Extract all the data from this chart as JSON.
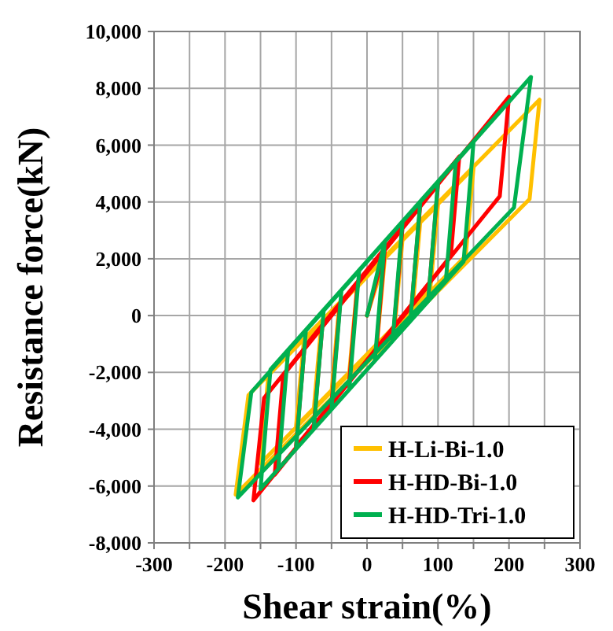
{
  "chart_data": {
    "type": "line",
    "xlabel": "Shear strain(%)",
    "ylabel": "Resistance force(kN)",
    "xlim": [
      -300,
      300
    ],
    "xticks": [
      -300,
      {
        "value": -250,
        "label": null
      },
      -200,
      {
        "value": -150,
        "label": null
      },
      -100,
      {
        "value": -50,
        "label": null
      },
      0,
      {
        "value": 50,
        "label": null
      },
      100,
      {
        "value": 150,
        "label": null
      },
      200,
      {
        "value": 250,
        "label": null
      },
      300
    ],
    "ylim": [
      -8000,
      10000
    ],
    "yticks": [
      {
        "value": -8000,
        "label": "-8,000"
      },
      {
        "value": -6000,
        "label": "-6,000"
      },
      {
        "value": -4000,
        "label": "-4,000"
      },
      {
        "value": -2000,
        "label": "-2,000"
      },
      0,
      {
        "value": 2000,
        "label": "2,000"
      },
      {
        "value": 4000,
        "label": "4,000"
      },
      {
        "value": 6000,
        "label": "6,000"
      },
      {
        "value": 8000,
        "label": "8,000"
      },
      {
        "value": 10000,
        "label": "10,000"
      }
    ],
    "grid": true,
    "legend": "bottom right",
    "marker": "none",
    "line_style": "solid",
    "series": [
      {
        "name": "H-Li-Bi-1.0",
        "color": "#ffc000",
        "x": [
          0,
          25,
          14,
          -25,
          -14,
          50,
          39,
          -50,
          -39,
          75,
          64,
          -75,
          -64,
          100,
          89,
          -100,
          -89,
          150,
          139,
          -150,
          -139,
          243,
          229,
          -185,
          -167,
          243
        ],
        "values": [
          0,
          2000,
          -1000,
          -2000,
          1000,
          2700,
          -400,
          -2700,
          400,
          3300,
          200,
          -3300,
          -200,
          3900,
          900,
          -3900,
          -900,
          5200,
          2100,
          -5200,
          -2100,
          7600,
          4100,
          -6300,
          -2800,
          7600
        ]
      },
      {
        "name": "H-HD-Bi-1.0",
        "color": "#ff0000",
        "x": [
          0,
          25,
          13,
          -25,
          -13,
          50,
          38,
          -50,
          -38,
          75,
          63,
          -75,
          -63,
          100,
          88,
          -100,
          -88,
          130,
          118,
          -130,
          -118,
          200,
          187,
          -160,
          -145,
          200
        ],
        "values": [
          0,
          2300,
          -1200,
          -2300,
          1200,
          3100,
          -400,
          -3100,
          400,
          3900,
          400,
          -3900,
          -400,
          4600,
          1100,
          -4600,
          -1100,
          5600,
          2100,
          -5600,
          -2100,
          7700,
          4200,
          -6500,
          -2900,
          7700
        ]
      },
      {
        "name": "H-HD-Tri-1.0",
        "color": "#00b050",
        "x": [
          0,
          25,
          11,
          -25,
          -11,
          50,
          36,
          -50,
          -36,
          75,
          61,
          -75,
          -61,
          100,
          86,
          -100,
          -86,
          125,
          111,
          -125,
          -111,
          150,
          136,
          -150,
          -136,
          231,
          207,
          -182,
          -163,
          231
        ],
        "values": [
          0,
          2600,
          -1600,
          -2600,
          1600,
          3300,
          -900,
          -3300,
          900,
          4000,
          -200,
          -4000,
          200,
          4700,
          500,
          -4700,
          -500,
          5400,
          1200,
          -5400,
          -1200,
          6100,
          1900,
          -6100,
          -1900,
          8400,
          3800,
          -6400,
          -2700,
          8400
        ]
      }
    ]
  }
}
